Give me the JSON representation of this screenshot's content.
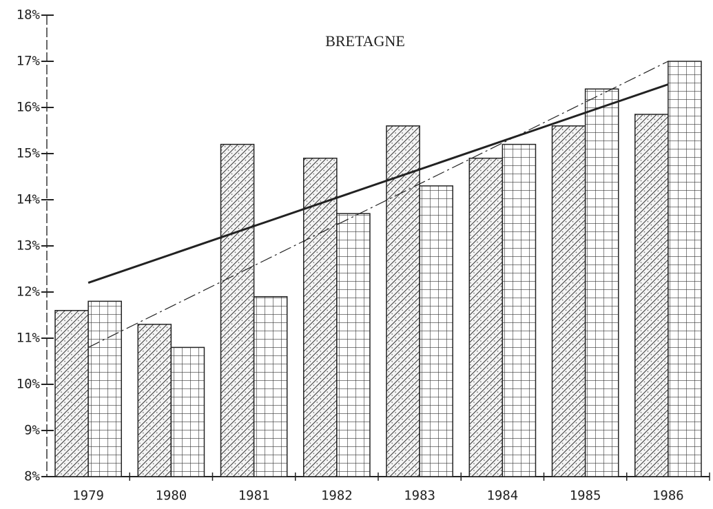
{
  "chart_data": {
    "type": "bar",
    "title": "BRETAGNE",
    "categories": [
      "1979",
      "1980",
      "1981",
      "1982",
      "1983",
      "1984",
      "1985",
      "1986"
    ],
    "series": [
      {
        "color": "#222222",
        "pattern": "hatch",
        "values": [
          11.6,
          11.3,
          15.2,
          14.9,
          15.6,
          14.9,
          15.6,
          15.85
        ]
      },
      {
        "color": "#222222",
        "pattern": "grid",
        "values": [
          11.8,
          10.8,
          11.9,
          13.7,
          14.3,
          15.2,
          16.4,
          17.0
        ]
      }
    ],
    "trend_lines": [
      {
        "style": "solid",
        "values": [
          12.2,
          16.5
        ]
      },
      {
        "style": "dashdot",
        "values": [
          10.8,
          17.0
        ]
      }
    ],
    "ylim": [
      8,
      18
    ],
    "yticks": [
      {
        "value": 8,
        "label": "8%"
      },
      {
        "value": 9,
        "label": "9%"
      },
      {
        "value": 10,
        "label": "10%"
      },
      {
        "value": 11,
        "label": "11%"
      },
      {
        "value": 12,
        "label": "12%"
      },
      {
        "value": 13,
        "label": "13%"
      },
      {
        "value": 14,
        "label": "14%"
      },
      {
        "value": 15,
        "label": "15%"
      },
      {
        "value": 16,
        "label": "16%"
      },
      {
        "value": 17,
        "label": "17%"
      },
      {
        "value": 18,
        "label": "18%"
      }
    ]
  }
}
